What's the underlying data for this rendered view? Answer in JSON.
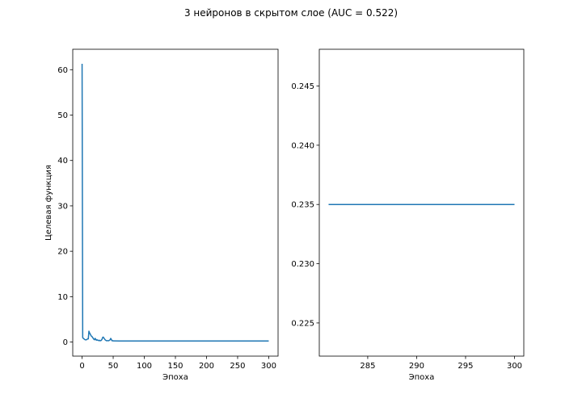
{
  "figure": {
    "title": "3 нейронов в скрытом слое (AUC = 0.522)"
  },
  "chart_data": [
    {
      "type": "line",
      "title": "",
      "xlabel": "Эпоха",
      "ylabel": "Целевая функция",
      "xlim": [
        -15,
        315
      ],
      "ylim": [
        -3.1,
        64.5
      ],
      "xticks": [
        0,
        50,
        100,
        150,
        200,
        250,
        300
      ],
      "xtick_labels": [
        "0",
        "50",
        "100",
        "150",
        "200",
        "250",
        "300"
      ],
      "yticks": [
        0,
        10,
        20,
        30,
        40,
        50,
        60
      ],
      "ytick_labels": [
        "0",
        "10",
        "20",
        "30",
        "40",
        "50",
        "60"
      ],
      "grid": false,
      "series": [
        {
          "color": "#1f77b4",
          "x": [
            0,
            1,
            2,
            3,
            4,
            5,
            6,
            7,
            8,
            9,
            10,
            11,
            12,
            13,
            14,
            15,
            16,
            17,
            18,
            19,
            20,
            21,
            22,
            23,
            24,
            25,
            26,
            27,
            28,
            29,
            30,
            31,
            32,
            33,
            34,
            35,
            36,
            37,
            38,
            39,
            40,
            41,
            42,
            43,
            44,
            45,
            46,
            47,
            48,
            49,
            50,
            60,
            80,
            100,
            150,
            200,
            250,
            300
          ],
          "y": [
            61.3,
            1.0,
            0.8,
            0.7,
            0.6,
            0.5,
            0.5,
            0.5,
            0.6,
            0.7,
            0.7,
            2.4,
            2.0,
            1.8,
            1.5,
            1.3,
            1.2,
            1.0,
            0.8,
            0.6,
            0.5,
            0.8,
            0.6,
            0.4,
            0.5,
            0.4,
            0.4,
            0.3,
            0.4,
            0.3,
            0.3,
            0.4,
            0.6,
            1.0,
            1.1,
            0.9,
            0.7,
            0.5,
            0.4,
            0.3,
            0.3,
            0.3,
            0.3,
            0.3,
            0.4,
            0.5,
            0.8,
            0.6,
            0.3,
            0.3,
            0.25,
            0.24,
            0.24,
            0.24,
            0.235,
            0.235,
            0.235,
            0.235
          ]
        }
      ]
    },
    {
      "type": "line",
      "title": "",
      "xlabel": "Эпоха",
      "ylabel": "",
      "xlim": [
        280.05,
        300.95
      ],
      "ylim": [
        0.2222,
        0.2481
      ],
      "xticks": [
        285,
        290,
        295,
        300
      ],
      "xtick_labels": [
        "285",
        "290",
        "295",
        "300"
      ],
      "yticks": [
        0.225,
        0.23,
        0.235,
        0.24,
        0.245
      ],
      "ytick_labels": [
        "0.225",
        "0.230",
        "0.235",
        "0.240",
        "0.245"
      ],
      "grid": false,
      "series": [
        {
          "color": "#1f77b4",
          "x": [
            281,
            282,
            283,
            284,
            285,
            286,
            287,
            288,
            289,
            290,
            291,
            292,
            293,
            294,
            295,
            296,
            297,
            298,
            299,
            300
          ],
          "y": [
            0.235,
            0.235,
            0.235,
            0.235,
            0.235,
            0.235,
            0.235,
            0.235,
            0.235,
            0.235,
            0.235,
            0.235,
            0.235,
            0.235,
            0.235,
            0.235,
            0.235,
            0.235,
            0.235,
            0.235
          ]
        }
      ]
    }
  ]
}
